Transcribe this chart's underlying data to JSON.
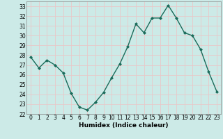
{
  "title": "",
  "x": [
    0,
    1,
    2,
    3,
    4,
    5,
    6,
    7,
    8,
    9,
    10,
    11,
    12,
    13,
    14,
    15,
    16,
    17,
    18,
    19,
    20,
    21,
    22,
    23
  ],
  "y": [
    27.8,
    26.7,
    27.5,
    27.0,
    26.2,
    24.1,
    22.7,
    22.4,
    23.2,
    24.2,
    25.7,
    27.1,
    28.9,
    31.2,
    30.3,
    31.8,
    31.8,
    33.1,
    31.8,
    30.3,
    30.0,
    28.6,
    26.3,
    24.3
  ],
  "line_color": "#1a6b5a",
  "marker": "D",
  "markersize": 2.0,
  "linewidth": 1.0,
  "xlabel": "Humidex (Indice chaleur)",
  "ylim": [
    22,
    33.5
  ],
  "yticks": [
    22,
    23,
    24,
    25,
    26,
    27,
    28,
    29,
    30,
    31,
    32,
    33
  ],
  "xticks": [
    0,
    1,
    2,
    3,
    4,
    5,
    6,
    7,
    8,
    9,
    10,
    11,
    12,
    13,
    14,
    15,
    16,
    17,
    18,
    19,
    20,
    21,
    22,
    23
  ],
  "bg_color": "#cceae7",
  "grid_color": "#e8c8c8",
  "tick_fontsize": 5.5,
  "label_fontsize": 6.5,
  "xlim": [
    -0.5,
    23.5
  ]
}
